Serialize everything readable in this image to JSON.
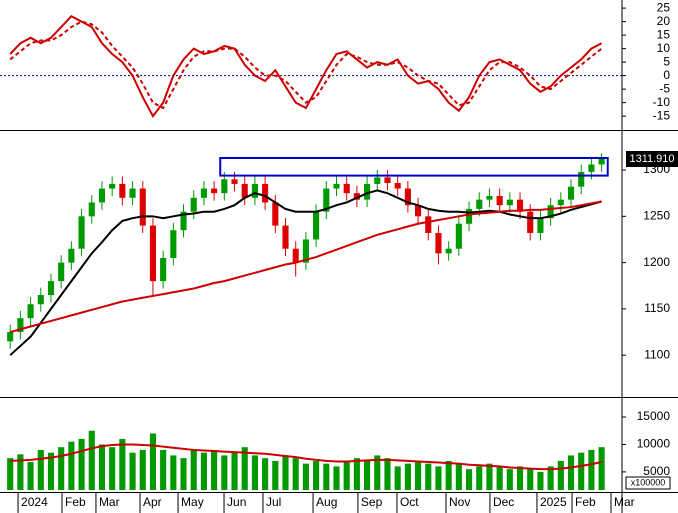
{
  "chart_data": [
    {
      "type": "line",
      "xlim": [
        -1,
        60
      ],
      "ylim": [
        -19.4,
        28
      ],
      "yticks": [
        -15,
        -10,
        -5,
        0,
        5,
        10,
        15,
        20,
        25
      ],
      "reference_line": 0,
      "reference_color": "#0000aa",
      "series": [
        {
          "color": "#cc0000",
          "dash": false,
          "values": [
            8,
            12,
            14,
            12,
            14,
            18,
            22,
            20,
            18,
            12,
            8,
            5,
            0,
            -8,
            -15,
            -10,
            0,
            6,
            10,
            8,
            9,
            11,
            10,
            4,
            0,
            -2,
            2,
            -4,
            -10,
            -12,
            -5,
            2,
            8,
            9,
            6,
            3,
            5,
            4,
            6,
            0,
            -3,
            -2,
            -5,
            -10,
            -13,
            -8,
            0,
            5,
            6,
            4,
            2,
            -3,
            -6,
            -4,
            0,
            3,
            6,
            10,
            12
          ]
        },
        {
          "color": "#cc0000",
          "dash": true,
          "values": [
            6,
            9,
            12,
            13,
            13,
            15,
            18,
            20,
            19,
            16,
            11,
            7,
            3,
            -3,
            -10,
            -12,
            -5,
            2,
            7,
            9,
            9,
            10,
            10,
            7,
            3,
            0,
            0,
            -2,
            -6,
            -10,
            -8,
            -2,
            4,
            8,
            7,
            5,
            4,
            4,
            5,
            3,
            0,
            -2,
            -3,
            -7,
            -11,
            -10,
            -4,
            2,
            5,
            5,
            3,
            0,
            -4,
            -5,
            -2,
            1,
            4,
            7,
            10
          ]
        }
      ]
    },
    {
      "type": "candlestick",
      "xlim": [
        -1,
        60
      ],
      "ylim": [
        1057,
        1340
      ],
      "yticks": [
        1100,
        1150,
        1200,
        1250,
        1300
      ],
      "up_color": "#009900",
      "down_color": "#dd0000",
      "open": [
        1115,
        1125,
        1140,
        1155,
        1165,
        1180,
        1200,
        1215,
        1250,
        1265,
        1280,
        1285,
        1270,
        1280,
        1240,
        1180,
        1205,
        1235,
        1255,
        1270,
        1280,
        1275,
        1290,
        1285,
        1270,
        1285,
        1265,
        1240,
        1215,
        1200,
        1225,
        1255,
        1280,
        1285,
        1275,
        1268,
        1285,
        1292,
        1286,
        1280,
        1262,
        1250,
        1232,
        1210,
        1215,
        1242,
        1258,
        1268,
        1272,
        1262,
        1268,
        1255,
        1232,
        1248,
        1262,
        1268,
        1282,
        1298,
        1306
      ],
      "high": [
        1133,
        1148,
        1163,
        1173,
        1188,
        1208,
        1223,
        1258,
        1273,
        1288,
        1293,
        1293,
        1288,
        1288,
        1248,
        1213,
        1243,
        1263,
        1278,
        1288,
        1288,
        1298,
        1298,
        1293,
        1293,
        1293,
        1273,
        1248,
        1223,
        1233,
        1263,
        1288,
        1293,
        1293,
        1283,
        1293,
        1300,
        1300,
        1294,
        1288,
        1270,
        1258,
        1240,
        1223,
        1250,
        1266,
        1276,
        1280,
        1280,
        1276,
        1276,
        1263,
        1256,
        1270,
        1276,
        1290,
        1306,
        1314,
        1318
      ],
      "low": [
        1107,
        1117,
        1132,
        1147,
        1157,
        1172,
        1192,
        1207,
        1242,
        1257,
        1272,
        1262,
        1262,
        1232,
        1165,
        1172,
        1197,
        1227,
        1247,
        1262,
        1267,
        1267,
        1277,
        1262,
        1262,
        1257,
        1232,
        1207,
        1185,
        1192,
        1217,
        1247,
        1272,
        1267,
        1260,
        1260,
        1277,
        1278,
        1272,
        1254,
        1242,
        1224,
        1198,
        1202,
        1207,
        1234,
        1250,
        1260,
        1254,
        1254,
        1247,
        1224,
        1224,
        1240,
        1254,
        1260,
        1274,
        1290,
        1298
      ],
      "close": [
        1125,
        1140,
        1155,
        1165,
        1180,
        1200,
        1215,
        1250,
        1265,
        1280,
        1285,
        1270,
        1280,
        1240,
        1180,
        1205,
        1235,
        1255,
        1270,
        1280,
        1275,
        1290,
        1285,
        1270,
        1285,
        1265,
        1240,
        1215,
        1200,
        1225,
        1255,
        1280,
        1285,
        1275,
        1268,
        1285,
        1292,
        1286,
        1280,
        1262,
        1250,
        1232,
        1210,
        1215,
        1242,
        1258,
        1268,
        1272,
        1262,
        1268,
        1255,
        1232,
        1248,
        1262,
        1268,
        1282,
        1298,
        1306,
        1311.91
      ],
      "close_label": "1311.910",
      "series": [
        {
          "color": "#000000",
          "values": [
            1100,
            1110,
            1120,
            1135,
            1150,
            1165,
            1180,
            1195,
            1210,
            1222,
            1235,
            1245,
            1248,
            1250,
            1250,
            1248,
            1250,
            1252,
            1253,
            1255,
            1255,
            1258,
            1262,
            1270,
            1275,
            1272,
            1265,
            1258,
            1255,
            1255,
            1255,
            1258,
            1262,
            1265,
            1270,
            1275,
            1278,
            1275,
            1270,
            1265,
            1262,
            1258,
            1256,
            1255,
            1255,
            1254,
            1255,
            1256,
            1255,
            1252,
            1250,
            1248,
            1248,
            1250,
            1253,
            1257,
            1260,
            1263,
            1266
          ]
        },
        {
          "color": "#cc0000",
          "values": [
            1125,
            1128,
            1131,
            1134,
            1137,
            1140,
            1143,
            1146,
            1149,
            1152,
            1155,
            1158,
            1160,
            1162,
            1164,
            1166,
            1168,
            1170,
            1172,
            1175,
            1178,
            1180,
            1183,
            1186,
            1189,
            1192,
            1195,
            1198,
            1200,
            1203,
            1206,
            1210,
            1214,
            1218,
            1222,
            1226,
            1230,
            1233,
            1236,
            1239,
            1242,
            1244,
            1246,
            1248,
            1250,
            1252,
            1253,
            1254,
            1255,
            1256,
            1256,
            1257,
            1257,
            1258,
            1259,
            1260,
            1262,
            1264,
            1266
          ]
        }
      ],
      "box": {
        "x": [
          20.6,
          58.6
        ],
        "y": [
          1294,
          1313
        ],
        "color": "#0000cc"
      }
    },
    {
      "type": "bar",
      "xlim": [
        -1,
        60
      ],
      "ylim": [
        1700,
        18100
      ],
      "yticks": [
        5000,
        10000,
        15000
      ],
      "color": "#009900",
      "volume_unit": "x100000",
      "values": [
        7500,
        8200,
        6800,
        9000,
        8500,
        9500,
        10500,
        11000,
        12500,
        10000,
        9500,
        11000,
        8500,
        9000,
        12000,
        9000,
        8000,
        7500,
        9000,
        8500,
        9000,
        8000,
        8500,
        9500,
        8000,
        7500,
        7000,
        8000,
        7500,
        6500,
        7000,
        6500,
        6000,
        7000,
        7500,
        7000,
        8000,
        7500,
        6000,
        6500,
        7000,
        6500,
        6000,
        7000,
        6500,
        5500,
        6000,
        6500,
        6000,
        5500,
        6000,
        5500,
        5000,
        6000,
        7000,
        8000,
        8500,
        9000,
        9500
      ],
      "series": [
        {
          "color": "#cc0000",
          "values": [
            7000,
            7100,
            7200,
            7400,
            7600,
            7900,
            8300,
            8800,
            9300,
            9700,
            9900,
            10000,
            10000,
            9900,
            9800,
            9600,
            9400,
            9200,
            9000,
            8900,
            8800,
            8700,
            8600,
            8500,
            8400,
            8300,
            8100,
            7900,
            7700,
            7400,
            7200,
            7000,
            6900,
            6900,
            7000,
            7100,
            7200,
            7200,
            7100,
            7000,
            6900,
            6800,
            6700,
            6600,
            6500,
            6300,
            6200,
            6100,
            6000,
            5800,
            5700,
            5600,
            5500,
            5500,
            5600,
            5800,
            6100,
            6400,
            6800
          ]
        }
      ],
      "xticks": [
        {
          "value": 0.77,
          "label": "2024"
        },
        {
          "value": 5.08,
          "label": "Feb"
        },
        {
          "value": 8.41,
          "label": "Mar"
        },
        {
          "value": 12.73,
          "label": "Apr"
        },
        {
          "value": 16.46,
          "label": "May"
        },
        {
          "value": 20.97,
          "label": "Jun"
        },
        {
          "value": 24.79,
          "label": "Jul"
        },
        {
          "value": 29.7,
          "label": "Aug"
        },
        {
          "value": 34.1,
          "label": "Sep"
        },
        {
          "value": 37.93,
          "label": "Oct"
        },
        {
          "value": 42.74,
          "label": "Nov"
        },
        {
          "value": 47.05,
          "label": "Dec"
        },
        {
          "value": 51.66,
          "label": "2025"
        },
        {
          "value": 55.1,
          "label": "Feb"
        },
        {
          "value": 58.92,
          "label": "Mar"
        }
      ]
    }
  ]
}
